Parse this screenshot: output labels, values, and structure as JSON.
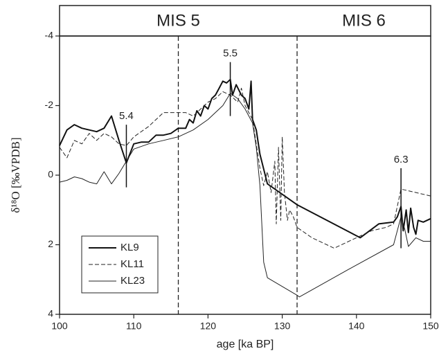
{
  "chart_data": {
    "type": "line",
    "x_label": "age [ka BP]",
    "y_label": "δ¹⁸O [‰VPDB]",
    "xlim": [
      100,
      150
    ],
    "xticks": [
      100,
      110,
      120,
      130,
      140,
      150
    ],
    "ylim": [
      -4,
      4
    ],
    "yticks": [
      -4,
      -2,
      0,
      2,
      4
    ],
    "y_inverted": true,
    "header_labels": [
      "MIS 5",
      "MIS 6"
    ],
    "boundaries": [
      116,
      132
    ],
    "annotations": [
      {
        "label": "5.4",
        "x": 109,
        "y1": -1.45,
        "y2": 0.35
      },
      {
        "label": "5.5",
        "x": 123,
        "y1": -3.25,
        "y2": -1.7
      },
      {
        "label": "6.3",
        "x": 146,
        "y1": -0.2,
        "y2": 2.1
      }
    ],
    "legend": "lower left",
    "series": [
      {
        "name": "KL9",
        "color": "#111111",
        "width": 2,
        "dash": "none",
        "x": [
          100,
          101,
          102,
          103,
          104,
          105,
          106,
          107,
          108,
          109,
          110,
          111,
          112,
          113,
          114,
          115,
          116,
          117,
          117.5,
          118,
          118.5,
          119,
          119.5,
          120,
          120.5,
          121,
          121.5,
          122,
          122.5,
          123,
          123.3,
          123.8,
          124.5,
          125,
          125.5,
          125.8,
          126,
          126.5,
          127,
          128,
          132,
          140.5,
          143,
          145,
          145.5,
          146,
          146.3,
          146.7,
          147,
          147.3,
          147.7,
          148,
          148.3,
          149,
          150
        ],
        "values": [
          -0.85,
          -1.3,
          -1.45,
          -1.35,
          -1.3,
          -1.25,
          -1.35,
          -1.7,
          -1.0,
          -0.35,
          -0.9,
          -0.95,
          -0.95,
          -1.15,
          -1.15,
          -1.2,
          -1.35,
          -1.35,
          -1.6,
          -1.5,
          -1.85,
          -1.7,
          -2.0,
          -1.9,
          -2.2,
          -2.3,
          -2.5,
          -2.7,
          -2.65,
          -2.75,
          -2.3,
          -2.6,
          -2.3,
          -2.2,
          -1.9,
          -2.7,
          -1.6,
          -1.3,
          -0.6,
          0.25,
          0.85,
          1.8,
          1.4,
          1.35,
          1.2,
          0.9,
          1.6,
          1.0,
          1.65,
          0.95,
          1.5,
          1.7,
          1.3,
          1.35,
          1.25
        ]
      },
      {
        "name": "KL11",
        "color": "#222222",
        "width": 1,
        "dash": "6 3",
        "x": [
          100,
          101,
          102,
          103,
          104,
          105,
          106,
          107,
          108,
          109,
          110,
          112,
          114,
          116,
          117,
          118,
          119,
          120,
          121,
          122,
          123,
          124,
          124.5,
          125,
          126,
          127,
          127.5,
          128,
          128.5,
          129,
          129.2,
          129.5,
          129.8,
          130,
          130.3,
          130.7,
          131,
          131.5,
          132,
          134,
          137,
          140,
          142,
          144,
          145,
          146,
          150
        ],
        "values": [
          -0.8,
          -0.5,
          -1.0,
          -0.9,
          -1.2,
          -1.0,
          -1.2,
          -1.1,
          -0.9,
          -0.85,
          -1.1,
          -1.4,
          -1.8,
          -1.8,
          -1.8,
          -1.7,
          -1.9,
          -2.1,
          -2.2,
          -2.4,
          -2.3,
          -2.1,
          -2.5,
          -2.0,
          -1.6,
          -0.2,
          0.3,
          -0.1,
          0.5,
          -0.4,
          1.4,
          -0.8,
          1.3,
          -1.1,
          0.5,
          1.3,
          1.0,
          1.2,
          1.5,
          1.8,
          2.1,
          1.8,
          1.6,
          1.5,
          1.4,
          0.4,
          0.6
        ]
      },
      {
        "name": "KL23",
        "color": "#222222",
        "width": 1,
        "dash": "none",
        "x": [
          100,
          101,
          102,
          103,
          104,
          105,
          106,
          107,
          108,
          109,
          110,
          112,
          114,
          116,
          118,
          120,
          122,
          123,
          124,
          125,
          126,
          126.5,
          127,
          127.5,
          128,
          132,
          132.3,
          139,
          145,
          146,
          146.5,
          147,
          148,
          149,
          150
        ],
        "values": [
          0.2,
          0.15,
          0.05,
          0.1,
          0.2,
          0.25,
          -0.1,
          0.25,
          -0.05,
          -0.4,
          -0.75,
          -0.9,
          -1.0,
          -1.1,
          -1.3,
          -1.6,
          -2.0,
          -2.35,
          -2.2,
          -1.9,
          -1.5,
          -0.8,
          0.3,
          2.5,
          2.95,
          3.45,
          3.5,
          2.7,
          2.0,
          1.2,
          1.55,
          2.05,
          1.8,
          1.9,
          1.9
        ]
      }
    ]
  }
}
